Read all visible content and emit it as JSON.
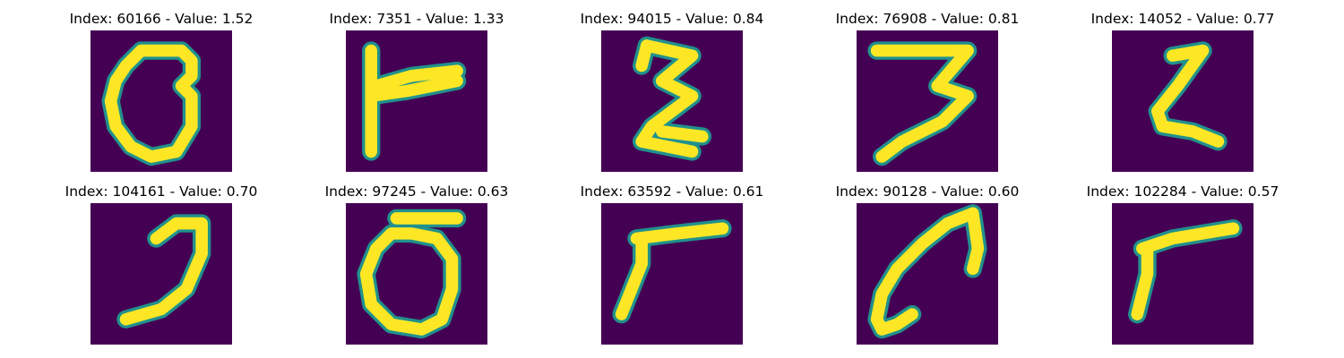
{
  "figure": {
    "background_color": "#440154",
    "stroke_color_low": "#21918c",
    "stroke_color_high": "#fde725",
    "colormap": "viridis",
    "panels": [
      {
        "title": "Index: 60166 - Value: 1.52",
        "glyph": "0"
      },
      {
        "title": "Index: 7351 - Value: 1.33",
        "glyph": "T-shape"
      },
      {
        "title": "Index: 94015 - Value: 0.84",
        "glyph": "Σ"
      },
      {
        "title": "Index: 76908 - Value: 0.81",
        "glyph": "3"
      },
      {
        "title": "Index: 14052 - Value: 0.77",
        "glyph": "ζ"
      },
      {
        "title": "Index: 104161 - Value: 0.70",
        "glyph": "J"
      },
      {
        "title": "Index: 97245 - Value: 0.63",
        "glyph": "ō"
      },
      {
        "title": "Index: 63592 - Value: 0.61",
        "glyph": "Γ"
      },
      {
        "title": "Index: 90128 - Value: 0.60",
        "glyph": "arc"
      },
      {
        "title": "Index: 102284 - Value: 0.57",
        "glyph": "Γ"
      }
    ]
  }
}
